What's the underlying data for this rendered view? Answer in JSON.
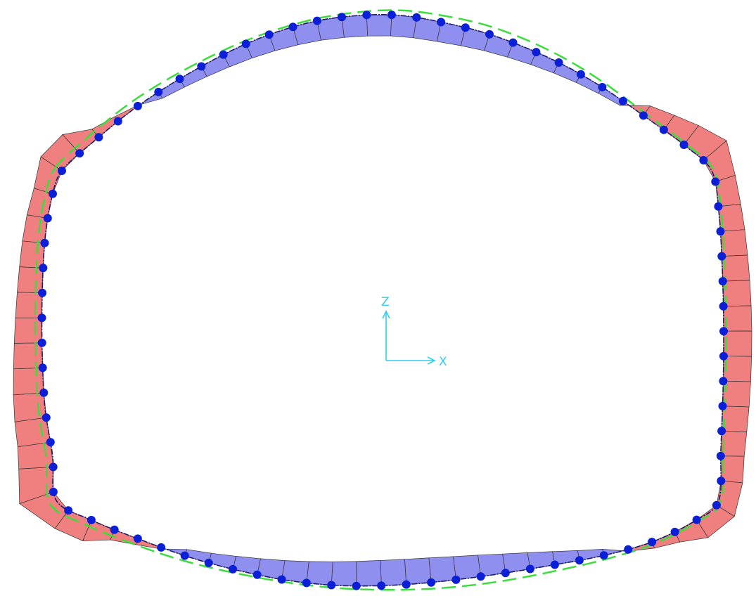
{
  "colors": {
    "background": "#ffffff",
    "frame_line": "#1a1a6e",
    "node_fill": "#0b1fd9",
    "positive_moment_fill": "#f08080",
    "negative_moment_fill": "#8f8ff0",
    "segment_stroke": "#333333",
    "deformed_shape": "#3ddc3d",
    "axis": "#33ccee"
  },
  "axes": {
    "vertical_label": "Z",
    "horizontal_label": "X"
  }
}
